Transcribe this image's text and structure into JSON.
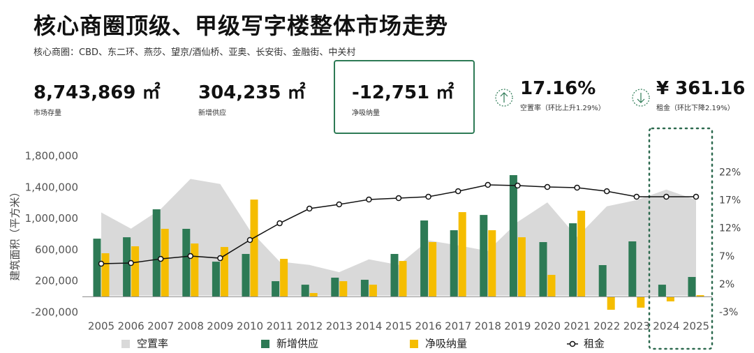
{
  "header": {
    "title": "核心商圈顶级、甲级写字楼整体市场走势",
    "subtitle": "核心商圈：CBD、东二环、燕莎、望京/酒仙桥、亚奥、长安街、金融街、中关村"
  },
  "kpis": [
    {
      "value": "8,743,869 ㎡",
      "label": "市场存量"
    },
    {
      "value": "304,235 ㎡",
      "label": "新增供应"
    },
    {
      "value": "-12,751 ㎡",
      "label": "净吸纳量"
    },
    {
      "value": "17.16%",
      "label": "空置率（环比上升1.29%）"
    },
    {
      "value": "¥ 361.16",
      "label": "租金（环比下降2.19%）"
    }
  ],
  "chart_data": {
    "type": "combo",
    "y_label": "建筑面积（平方米）",
    "categories": [
      "2005",
      "2006",
      "2007",
      "2008",
      "2009",
      "2010",
      "2011",
      "2012",
      "2013",
      "2014",
      "2015",
      "2016",
      "2017",
      "2018",
      "2019",
      "2020",
      "2021",
      "2022",
      "2023",
      "2024",
      "2025"
    ],
    "ylim": [
      -200000,
      1900000
    ],
    "yticks": [
      {
        "value": -200000,
        "label": "-200,000"
      },
      {
        "value": 200000,
        "label": "200,000"
      },
      {
        "value": 600000,
        "label": "600,000"
      },
      {
        "value": 1000000,
        "label": "1,000,000"
      },
      {
        "value": 1400000,
        "label": "1,400,000"
      },
      {
        "value": 1800000,
        "label": "1,800,000"
      }
    ],
    "y2lim": [
      -3,
      26.35
    ],
    "y2ticks": [
      {
        "value": -3,
        "label": "-3%"
      },
      {
        "value": 2,
        "label": "2%"
      },
      {
        "value": 7,
        "label": "7%"
      },
      {
        "value": 12,
        "label": "12%"
      },
      {
        "value": 17,
        "label": "17%"
      },
      {
        "value": 22,
        "label": "22%"
      }
    ],
    "series": [
      {
        "name": "空置率",
        "kind": "area",
        "axis": "y2",
        "color": "#d9d9d9",
        "values": [
          14.9,
          12.0,
          15.5,
          20.9,
          20.0,
          11.7,
          6.1,
          5.5,
          4.2,
          6.5,
          5.5,
          9.9,
          9.0,
          8.0,
          13.2,
          16.7,
          10.5,
          16.0,
          17.1,
          19.0,
          17.16
        ]
      },
      {
        "name": "新增供应",
        "kind": "bar",
        "color": "#2d7a55",
        "values": [
          745000,
          763000,
          1121000,
          871000,
          450000,
          549000,
          200000,
          155000,
          245000,
          218000,
          549000,
          978000,
          853000,
          1049000,
          1559000,
          701000,
          942000,
          406000,
          710000,
          155000,
          254000
        ]
      },
      {
        "name": "净吸纳量",
        "kind": "bar",
        "color": "#f5bd00",
        "values": [
          558000,
          647000,
          871000,
          683000,
          638000,
          1246000,
          486000,
          48000,
          200000,
          155000,
          459000,
          701000,
          1085000,
          853000,
          763000,
          281000,
          1103000,
          -166000,
          -139000,
          -59000,
          21000
        ]
      },
      {
        "name": "租金",
        "kind": "line",
        "color": "#111111",
        "values": [
          424000,
          433000,
          486000,
          522000,
          495000,
          728000,
          942000,
          1130000,
          1184000,
          1246000,
          1264000,
          1282000,
          1353000,
          1434000,
          1425000,
          1407000,
          1398000,
          1353000,
          1282000,
          1282000,
          1282000
        ]
      }
    ]
  }
}
